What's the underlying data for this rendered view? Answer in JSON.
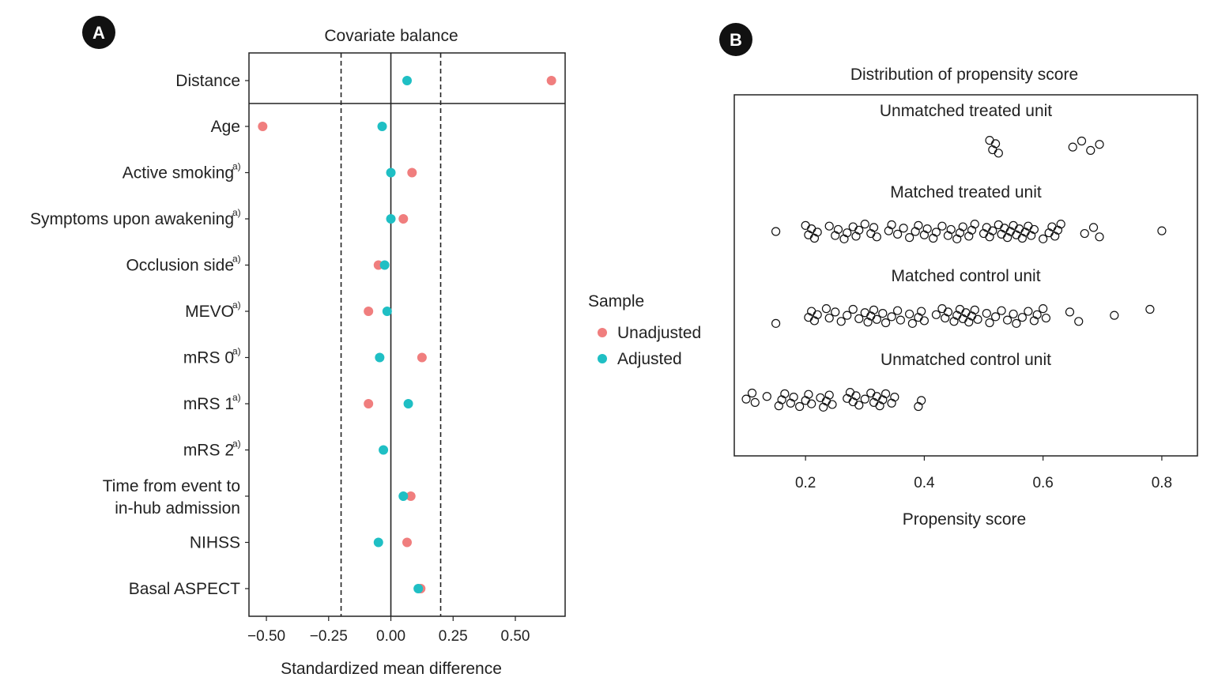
{
  "panels": {
    "a_label": "A",
    "b_label": "B"
  },
  "chart_data": [
    {
      "type": "scatter",
      "title": "Covariate balance",
      "xlabel": "Standardized mean difference",
      "ylabel": "",
      "xlim": [
        -0.57,
        0.7
      ],
      "xticks": [
        -0.5,
        -0.25,
        0.0,
        0.25,
        0.5
      ],
      "xtick_labels": [
        "−0.50",
        "−0.25",
        "0.00",
        "0.25",
        "0.50"
      ],
      "threshold_lines": [
        -0.2,
        0.2
      ],
      "zero_line": 0,
      "legend": {
        "title": "Sample",
        "position": "right"
      },
      "series": [
        {
          "name": "Unadjusted",
          "color": "#F07E7E"
        },
        {
          "name": "Adjusted",
          "color": "#1FBFC4"
        }
      ],
      "covariates": [
        {
          "label": "Distance",
          "sup": "",
          "unadjusted": 0.645,
          "adjusted": 0.065
        },
        {
          "label": "Age",
          "sup": "",
          "unadjusted": -0.515,
          "adjusted": -0.035
        },
        {
          "label": "Active smoking",
          "sup": "a)",
          "unadjusted": 0.085,
          "adjusted": 0.0
        },
        {
          "label": "Symptoms upon awakening",
          "sup": "a)",
          "unadjusted": 0.05,
          "adjusted": 0.0
        },
        {
          "label": "Occlusion side",
          "sup": "a)",
          "unadjusted": -0.05,
          "adjusted": -0.025
        },
        {
          "label": "MEVO",
          "sup": "a)",
          "unadjusted": -0.09,
          "adjusted": -0.015
        },
        {
          "label": "mRS 0",
          "sup": "a)",
          "unadjusted": 0.125,
          "adjusted": -0.045
        },
        {
          "label": "mRS 1",
          "sup": "a)",
          "unadjusted": -0.09,
          "adjusted": 0.07
        },
        {
          "label": "mRS 2",
          "sup": "a)",
          "unadjusted": null,
          "adjusted": -0.03
        },
        {
          "label": "Time from event to",
          "label2": "in-hub admission",
          "sup": "",
          "unadjusted": 0.08,
          "adjusted": 0.05
        },
        {
          "label": "NIHSS",
          "sup": "",
          "unadjusted": 0.065,
          "adjusted": -0.05
        },
        {
          "label": "Basal ASPECT",
          "sup": "",
          "unadjusted": 0.12,
          "adjusted": 0.11
        }
      ]
    },
    {
      "type": "scatter",
      "title": "Distribution of propensity score",
      "xlabel": "Propensity score",
      "xlim": [
        0.08,
        0.86
      ],
      "xticks": [
        0.2,
        0.4,
        0.6,
        0.8
      ],
      "xtick_labels": [
        "0.2",
        "0.4",
        "0.6",
        "0.8"
      ],
      "groups": [
        {
          "name": "Unmatched treated unit",
          "values": [
            0.51,
            0.515,
            0.52,
            0.525,
            0.65,
            0.665,
            0.68,
            0.695
          ]
        },
        {
          "name": "Matched treated unit",
          "values": [
            0.15,
            0.2,
            0.205,
            0.21,
            0.215,
            0.22,
            0.24,
            0.25,
            0.255,
            0.265,
            0.27,
            0.28,
            0.285,
            0.29,
            0.3,
            0.31,
            0.315,
            0.32,
            0.34,
            0.345,
            0.355,
            0.365,
            0.375,
            0.385,
            0.39,
            0.4,
            0.405,
            0.415,
            0.42,
            0.43,
            0.44,
            0.445,
            0.455,
            0.46,
            0.465,
            0.475,
            0.48,
            0.485,
            0.5,
            0.505,
            0.51,
            0.515,
            0.525,
            0.53,
            0.535,
            0.54,
            0.545,
            0.55,
            0.555,
            0.56,
            0.565,
            0.57,
            0.575,
            0.58,
            0.585,
            0.6,
            0.61,
            0.615,
            0.62,
            0.625,
            0.63,
            0.67,
            0.685,
            0.695,
            0.8
          ]
        },
        {
          "name": "Matched control unit",
          "values": [
            0.15,
            0.205,
            0.21,
            0.215,
            0.22,
            0.235,
            0.24,
            0.25,
            0.26,
            0.27,
            0.28,
            0.29,
            0.3,
            0.305,
            0.31,
            0.315,
            0.32,
            0.33,
            0.335,
            0.345,
            0.355,
            0.36,
            0.375,
            0.38,
            0.39,
            0.395,
            0.4,
            0.42,
            0.43,
            0.435,
            0.44,
            0.45,
            0.455,
            0.46,
            0.465,
            0.47,
            0.475,
            0.48,
            0.485,
            0.49,
            0.505,
            0.51,
            0.52,
            0.53,
            0.54,
            0.55,
            0.555,
            0.565,
            0.575,
            0.585,
            0.59,
            0.6,
            0.605,
            0.645,
            0.66,
            0.72,
            0.78
          ]
        },
        {
          "name": "Unmatched control unit",
          "values": [
            0.1,
            0.11,
            0.115,
            0.135,
            0.155,
            0.16,
            0.165,
            0.175,
            0.18,
            0.19,
            0.2,
            0.205,
            0.21,
            0.225,
            0.23,
            0.235,
            0.24,
            0.245,
            0.27,
            0.275,
            0.28,
            0.285,
            0.29,
            0.3,
            0.31,
            0.315,
            0.32,
            0.325,
            0.33,
            0.335,
            0.345,
            0.35,
            0.39,
            0.395
          ]
        }
      ]
    }
  ]
}
